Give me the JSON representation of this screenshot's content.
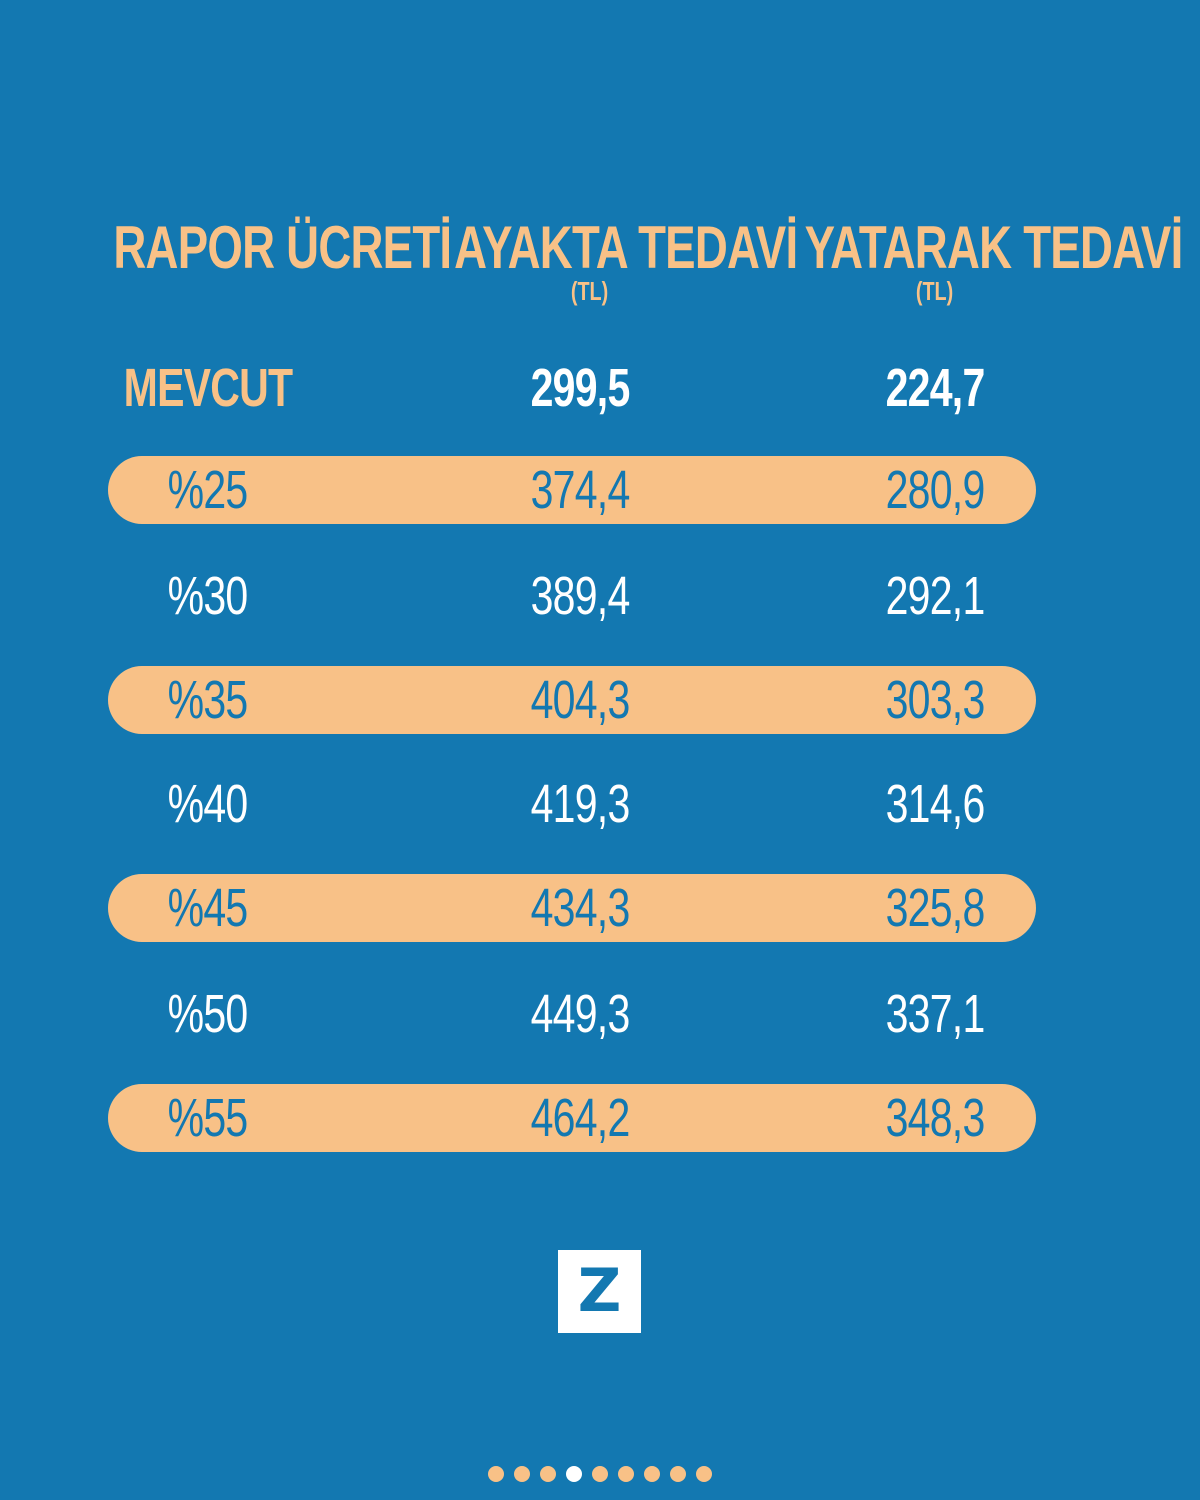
{
  "colors": {
    "background": "#1378b1",
    "accent": "#f8c187",
    "text": "#ffffff"
  },
  "header": {
    "col1": "RAPOR ÜCRETİ",
    "col2": "AYAKTA TEDAVİ",
    "col2_unit": "(TL)",
    "col3": "YATARAK TEDAVİ",
    "col3_unit": "(TL)"
  },
  "rows": [
    {
      "label": "MEVCUT",
      "ayakta": "299,5",
      "yatarak": "224,7",
      "highlighted": false
    },
    {
      "label": "%25",
      "ayakta": "374,4",
      "yatarak": "280,9",
      "highlighted": true
    },
    {
      "label": "%30",
      "ayakta": "389,4",
      "yatarak": "292,1",
      "highlighted": false
    },
    {
      "label": "%35",
      "ayakta": "404,3",
      "yatarak": "303,3",
      "highlighted": true
    },
    {
      "label": "%40",
      "ayakta": "419,3",
      "yatarak": "314,6",
      "highlighted": false
    },
    {
      "label": "%45",
      "ayakta": "434,3",
      "yatarak": "325,8",
      "highlighted": true
    },
    {
      "label": "%50",
      "ayakta": "449,3",
      "yatarak": "337,1",
      "highlighted": false
    },
    {
      "label": "%55",
      "ayakta": "464,2",
      "yatarak": "348,3",
      "highlighted": true
    }
  ],
  "logo": {
    "letter": "Z",
    "icon": "z-logo-icon"
  },
  "pagination": {
    "total": 9,
    "active_index": 3
  }
}
